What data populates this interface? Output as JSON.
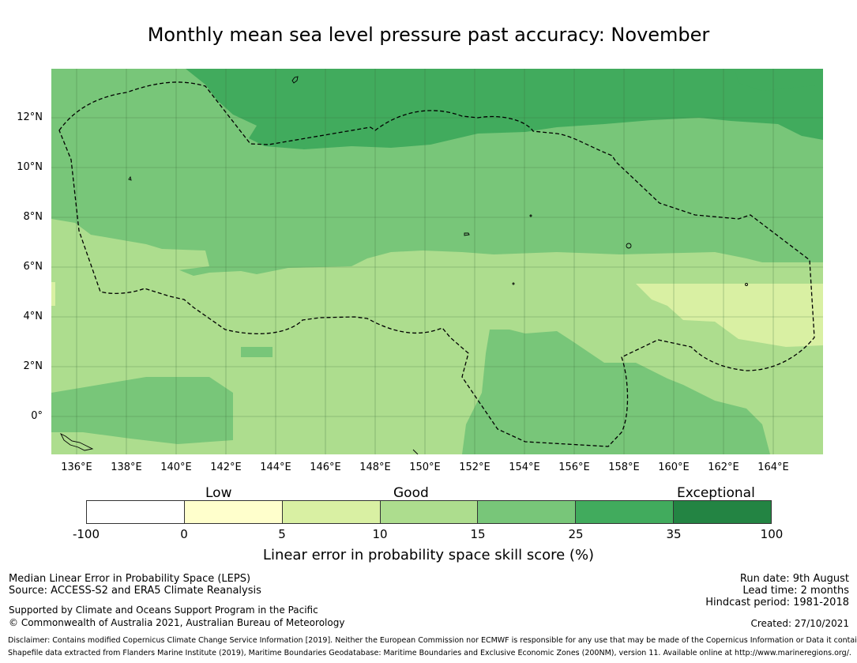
{
  "title": "Monthly mean sea level pressure past accuracy: November",
  "map": {
    "lat_ticks": [
      "12°N",
      "10°N",
      "8°N",
      "6°N",
      "4°N",
      "2°N",
      "0°"
    ],
    "lon_ticks": [
      "136°E",
      "138°E",
      "140°E",
      "142°E",
      "144°E",
      "146°E",
      "148°E",
      "150°E",
      "152°E",
      "154°E",
      "156°E",
      "158°E",
      "160°E",
      "162°E",
      "164°E"
    ]
  },
  "legend": {
    "categories": [
      "Low",
      "Good",
      "Exceptional"
    ],
    "ticks": [
      "-100",
      "0",
      "5",
      "10",
      "15",
      "25",
      "35",
      "100"
    ],
    "colors": [
      "#ffffff",
      "#ffffcc",
      "#d9f0a3",
      "#addd8e",
      "#78c679",
      "#41ab5d",
      "#238443"
    ],
    "label": "Linear error in probability space skill score (%)"
  },
  "footer": {
    "left": [
      "Median Linear Error in Probability Space (LEPS)",
      "Source: ACCESS-S2 and ERA5 Climate Reanalysis",
      "Supported by Climate and Oceans Support Program in the Pacific",
      "© Commonwealth of Australia 2021, Australian Bureau of Meteorology"
    ],
    "right": [
      "Run date: 9th August",
      "Lead time: 2 months",
      "Hindcast period: 1981-2018",
      "Created: 27/10/2021"
    ],
    "disclaimer": "Disclaimer: Contains modified Copernicus Climate Change Service Information [2019]. Neither the European Commission nor ECMWF is responsible for any use that may be made of the Copernicus Information or Data it contains.",
    "shapefile": "Shapefile data extracted from Flanders Marine Institute (2019), Maritime Boundaries Geodatabase: Maritime Boundaries and Exclusive Economic Zones (200NM), version 11. Available online at http://www.marineregions.org/."
  }
}
